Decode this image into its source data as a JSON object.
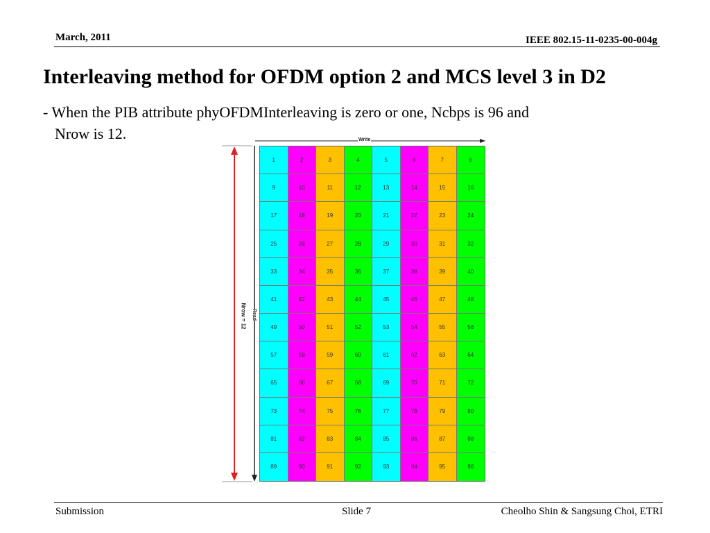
{
  "header": {
    "date": "March,  2011",
    "doc_id": "IEEE 802.15-11-0235-00-004g"
  },
  "slide": {
    "title": "Interleaving method for OFDM option 2 and MCS level 3 in D2",
    "body_line1": "- When the PIB attribute phyOFDMInterleaving is zero or one, Ncbps is 96 and",
    "body_line2": "Nrow is 12."
  },
  "figure": {
    "write_label": "Write",
    "read_label": "Read",
    "nrow_label": "Nrow = 12",
    "columns": 8,
    "rows": 12,
    "column_colors": [
      "#00ffff",
      "#ff00ff",
      "#ffc000",
      "#00ff00",
      "#00ffff",
      "#ff00ff",
      "#ffc000",
      "#00ff00"
    ],
    "cells": [
      [
        "1",
        "2",
        "3",
        "4",
        "5",
        "6",
        "7",
        "8"
      ],
      [
        "9",
        "10",
        "11",
        "12",
        "13",
        "14",
        "15",
        "16"
      ],
      [
        "17",
        "18",
        "19",
        "20",
        "21",
        "22",
        "23",
        "24"
      ],
      [
        "25",
        "26",
        "27",
        "28",
        "29",
        "30",
        "31",
        "32"
      ],
      [
        "33",
        "34",
        "35",
        "36",
        "37",
        "38",
        "39",
        "40"
      ],
      [
        "41",
        "42",
        "43",
        "44",
        "45",
        "46",
        "47",
        "48"
      ],
      [
        "49",
        "50",
        "51",
        "52",
        "53",
        "54",
        "55",
        "56"
      ],
      [
        "57",
        "58",
        "59",
        "60",
        "61",
        "62",
        "63",
        "64"
      ],
      [
        "65",
        "66",
        "67",
        "68",
        "69",
        "70",
        "71",
        "72"
      ],
      [
        "73",
        "74",
        "75",
        "76",
        "77",
        "78",
        "79",
        "80"
      ],
      [
        "81",
        "82",
        "83",
        "84",
        "85",
        "86",
        "87",
        "88"
      ],
      [
        "89",
        "90",
        "91",
        "92",
        "93",
        "94",
        "95",
        "96"
      ]
    ]
  },
  "footer": {
    "left": "Submission",
    "center": "Slide 7",
    "right": "Cheolho Shin & Sangsung Choi, ETRI"
  }
}
